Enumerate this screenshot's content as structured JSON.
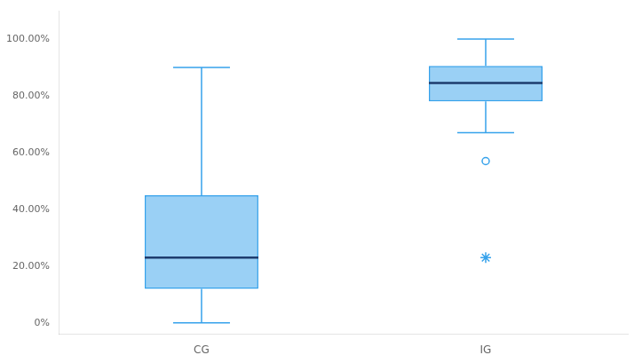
{
  "chart_data": {
    "type": "box",
    "categories": [
      "CG",
      "IG"
    ],
    "boxes": [
      {
        "whisker_low": 0.0,
        "q1": 0.12,
        "median": 0.23,
        "q3": 0.45,
        "whisker_high": 0.9,
        "outliers": [],
        "extreme_outliers": []
      },
      {
        "whisker_low": 0.67,
        "q1": 0.78,
        "median": 0.845,
        "q3": 0.905,
        "whisker_high": 1.0,
        "outliers": [
          0.57
        ],
        "extreme_outliers": [
          0.23
        ]
      }
    ],
    "ylim": [
      -0.04,
      1.1
    ],
    "yticks": [
      {
        "value": 0.0,
        "label": "0%"
      },
      {
        "value": 0.2,
        "label": "20.00%"
      },
      {
        "value": 0.4,
        "label": "40.00%"
      },
      {
        "value": 0.6,
        "label": "60.00%"
      },
      {
        "value": 0.8,
        "label": "80.00%"
      },
      {
        "value": 1.0,
        "label": "100.00%"
      }
    ],
    "grid": false
  }
}
